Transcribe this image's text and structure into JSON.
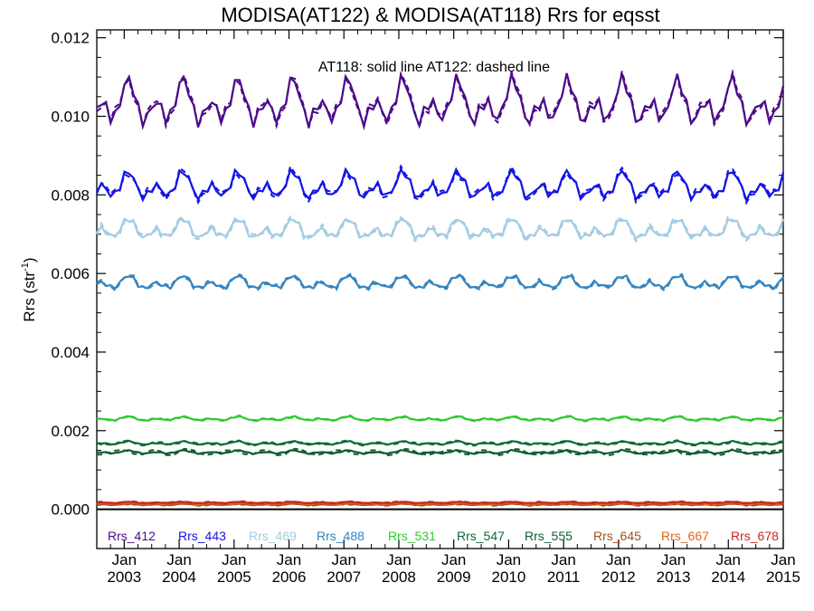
{
  "chart_data": {
    "type": "line",
    "title": "MODISA(AT122) & MODISA(AT118)  Rrs for eqsst",
    "ylabel": "Rrs (str",
    "ylabel_sup": "-1",
    "xlabel": "",
    "annotation": "AT118: solid line   AT122: dashed line",
    "line_styles": {
      "AT118": "solid",
      "AT122": "dashed"
    },
    "xlim": [
      2002.5,
      2015.0
    ],
    "ylim": [
      -0.001,
      0.0122
    ],
    "y_ticks": [
      "0.000",
      "0.002",
      "0.004",
      "0.006",
      "0.008",
      "0.010",
      "0.012"
    ],
    "y_tick_values": [
      0.0,
      0.002,
      0.004,
      0.006,
      0.008,
      0.01,
      0.012
    ],
    "x_tick_month": "Jan",
    "x_ticks": [
      "2003",
      "2004",
      "2005",
      "2006",
      "2007",
      "2008",
      "2009",
      "2010",
      "2011",
      "2012",
      "2013",
      "2014",
      "2015"
    ],
    "grid": false,
    "legend_placement": "bottom",
    "series": [
      {
        "name": "Rrs_412",
        "color": "#4b0b8a",
        "mean": 0.0103,
        "amp": 0.00065,
        "dash_diff": 0.0001
      },
      {
        "name": "Rrs_443",
        "color": "#1414e6",
        "mean": 0.0082,
        "amp": 0.0004,
        "dash_diff": 8e-05
      },
      {
        "name": "Rrs_469",
        "color": "#a2cce2",
        "mean": 0.0071,
        "amp": 0.0003,
        "dash_diff": 7e-05
      },
      {
        "name": "Rrs_488",
        "color": "#3585c0",
        "mean": 0.00575,
        "amp": 0.0002,
        "dash_diff": 5e-05
      },
      {
        "name": "Rrs_531",
        "color": "#2ccb2c",
        "mean": 0.0023,
        "amp": 6e-05,
        "dash_diff": 2e-05
      },
      {
        "name": "Rrs_547",
        "color": "#0f6a3a",
        "mean": 0.00168,
        "amp": 5e-05,
        "dash_diff": 3e-05
      },
      {
        "name": "Rrs_555",
        "color": "#0e5c32",
        "mean": 0.00145,
        "amp": 5e-05,
        "dash_diff": 6e-05
      },
      {
        "name": "Rrs_645",
        "color": "#a0521e",
        "mean": 0.00012,
        "amp": 2e-05,
        "dash_diff": 2e-05
      },
      {
        "name": "Rrs_667",
        "color": "#e3661b",
        "mean": 0.00015,
        "amp": 2e-05,
        "dash_diff": 3e-05
      },
      {
        "name": "Rrs_678",
        "color": "#cc2525",
        "mean": 0.00017,
        "amp": 2e-05,
        "dash_diff": 2e-05
      }
    ]
  }
}
